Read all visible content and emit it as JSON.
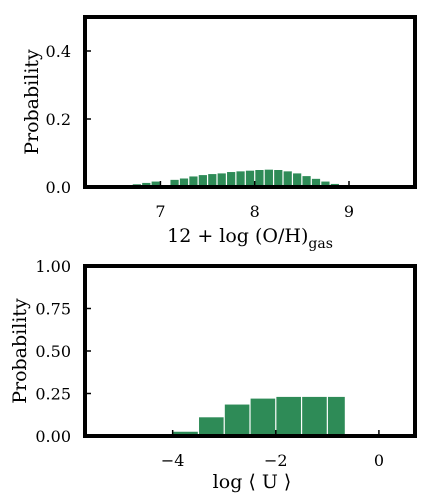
{
  "chart_data": [
    {
      "type": "bar",
      "xlabel_main": "12 + log (O/H)",
      "xlabel_sub": "gas",
      "ylabel": "Probability",
      "xlim": [
        6.2,
        9.7
      ],
      "ylim": [
        0,
        0.5
      ],
      "xticks": [
        7,
        8,
        9
      ],
      "yticks": [
        "0.0",
        "0.2",
        "0.4"
      ],
      "ytick_values": [
        0.0,
        0.2,
        0.4
      ],
      "bar_color": "#2e8b57",
      "bar_width": 0.1,
      "bins_center": [
        6.55,
        6.65,
        6.75,
        6.85,
        6.95,
        7.05,
        7.15,
        7.25,
        7.35,
        7.45,
        7.55,
        7.65,
        7.75,
        7.85,
        7.95,
        8.05,
        8.15,
        8.25,
        8.35,
        8.45,
        8.55,
        8.65,
        8.75,
        8.85,
        8.95,
        9.05
      ],
      "values": [
        0.003,
        0.005,
        0.008,
        0.012,
        0.016,
        0.004,
        0.021,
        0.025,
        0.031,
        0.035,
        0.038,
        0.04,
        0.044,
        0.046,
        0.048,
        0.05,
        0.051,
        0.05,
        0.046,
        0.04,
        0.032,
        0.024,
        0.016,
        0.009,
        0.004,
        0.002
      ]
    },
    {
      "type": "bar",
      "xlabel": "log ⟨ U ⟩",
      "ylabel": "Probability",
      "xlim": [
        -5.7,
        0.7
      ],
      "ylim": [
        0,
        1.0
      ],
      "xticks": [
        "−4",
        "−2",
        "0"
      ],
      "xtick_values": [
        -4,
        -2,
        0
      ],
      "yticks": [
        "0.00",
        "0.25",
        "0.50",
        "0.75",
        "1.00"
      ],
      "ytick_values": [
        0.0,
        0.25,
        0.5,
        0.75,
        1.0
      ],
      "bar_color": "#2e8b57",
      "bins_left": [
        -4.0,
        -3.5,
        -3.0,
        -2.5,
        -2.0,
        -1.5,
        -1.0
      ],
      "bins_right": [
        -3.5,
        -3.0,
        -2.5,
        -2.0,
        -1.5,
        -1.0,
        -0.65
      ],
      "values": [
        0.025,
        0.11,
        0.185,
        0.22,
        0.23,
        0.23,
        0.23
      ]
    }
  ]
}
